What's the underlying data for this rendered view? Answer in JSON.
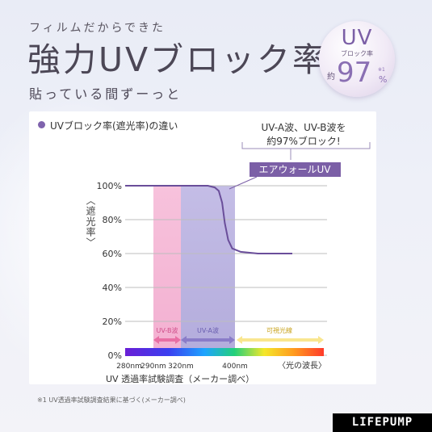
{
  "header": {
    "subtitle": "フィルムだからできた",
    "title": "強力UVブロック率",
    "tagline": "貼っている間ずーっと"
  },
  "badge": {
    "uv": "UV",
    "sub": "ブロック率",
    "pre": "約",
    "value": "97",
    "sign": "%",
    "note": "※1"
  },
  "legend_title": "UVブロック率(遮光率)の違い",
  "callout": {
    "line1": "UV-A波、UV-B波を",
    "line2": "約97%ブロック!"
  },
  "footnote": "※1 UV透過率試験調査結果に基づく(メーカー調べ)",
  "logo": "LIFEPUMP",
  "colors": {
    "accent": "#7f63ad",
    "uvb_band": "#f5b9d6",
    "uva_band": "#b9b3e0",
    "visible_arrow": "#f9e68f",
    "curve": "#6a4e9a"
  },
  "chart_data": {
    "type": "line",
    "ylabel": "〈遮光率〉",
    "xlabel": "〈光の波長〉",
    "yticks": [
      "0%",
      "20%",
      "40%",
      "60%",
      "80%",
      "100%"
    ],
    "ylim": [
      0,
      100
    ],
    "xticks": [
      {
        "value": 280,
        "label": "280nm"
      },
      {
        "value": 290,
        "label": "290nm"
      },
      {
        "value": 320,
        "label": "320nm"
      },
      {
        "value": 400,
        "label": "400nm"
      }
    ],
    "source": "UV 透過率試験調査（メーカー調べ）",
    "series": [
      {
        "name": "エアウォールUV",
        "points": [
          [
            270,
            100
          ],
          [
            330,
            100
          ],
          [
            360,
            100
          ],
          [
            370,
            99
          ],
          [
            376,
            97
          ],
          [
            381,
            90
          ],
          [
            385,
            78
          ],
          [
            390,
            68
          ],
          [
            396,
            63
          ],
          [
            405,
            61
          ],
          [
            420,
            60
          ],
          [
            450,
            60
          ]
        ]
      }
    ],
    "bands": [
      {
        "label": "UV-B波",
        "from": 290,
        "to": 320
      },
      {
        "label": "UV-A波",
        "from": 320,
        "to": 400
      },
      {
        "label": "可視光線",
        "from": 400,
        "to": 600
      }
    ]
  }
}
